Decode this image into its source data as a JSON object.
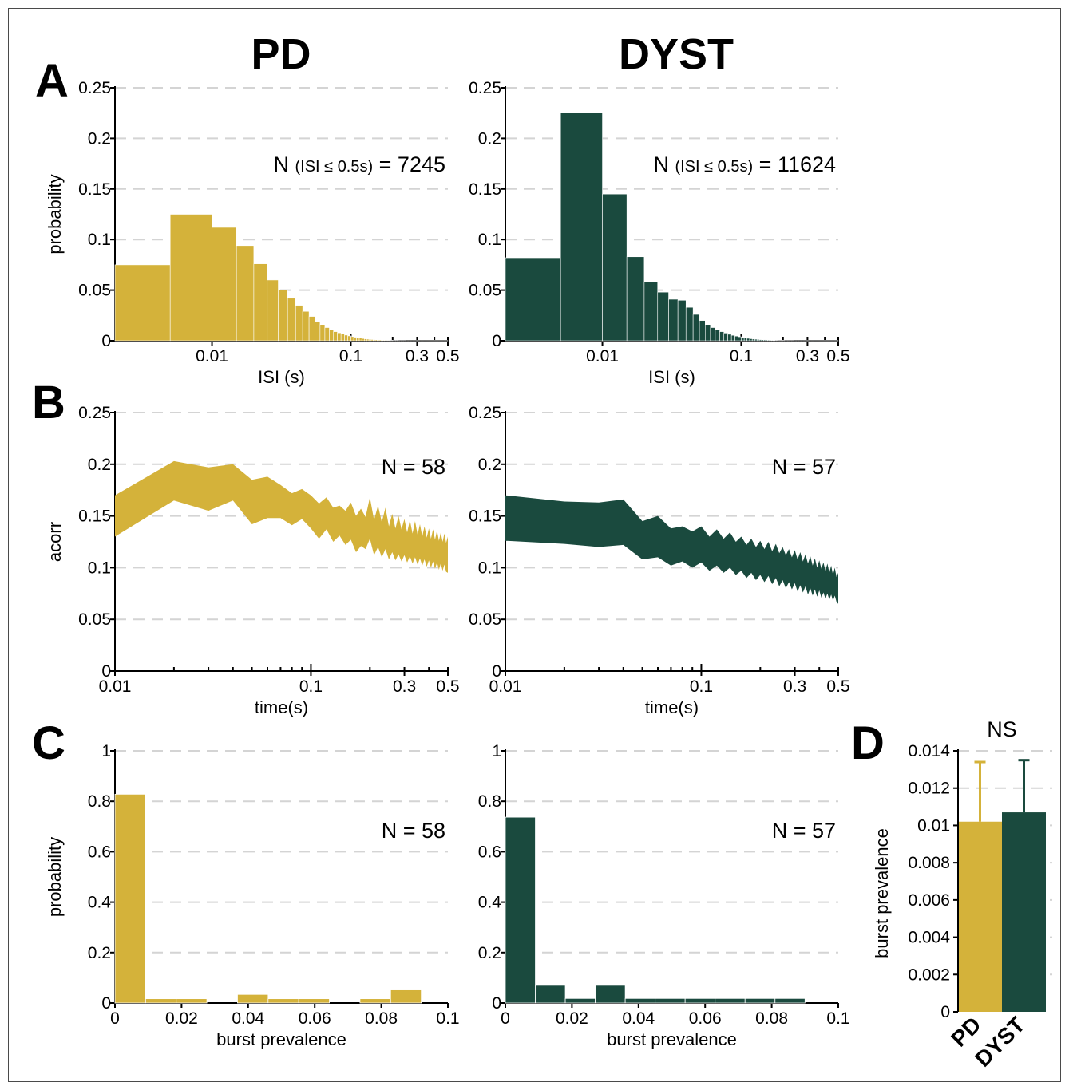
{
  "colors": {
    "pd": "#d4b23a",
    "dyst": "#1a4a3e",
    "grid": "#d4d4d4",
    "axis": "#000000"
  },
  "figure": {
    "col_titles": [
      "PD",
      "DYST"
    ],
    "panel_letters": [
      "A",
      "B",
      "C",
      "D"
    ]
  },
  "chart_data": [
    {
      "id": "A-PD",
      "type": "bar",
      "xlabel": "ISI (s)",
      "ylabel": "probability",
      "x_scale": "log",
      "xlim": [
        0.002,
        0.5
      ],
      "ylim": [
        0,
        0.25
      ],
      "yticks": [
        0,
        0.05,
        0.1,
        0.15,
        0.2,
        0.25
      ],
      "yticklabels": [
        "0",
        "0.05",
        "0.1",
        "0.15",
        "0.2",
        "0.25"
      ],
      "xticks": [
        0.01,
        0.1,
        0.3,
        0.5
      ],
      "xticklabels": [
        "0.01",
        "0.1",
        "0.3",
        "0.5"
      ],
      "annotation": {
        "prefix": "N",
        "sub": "(ISI ≤ 0.5s)",
        "suffix": "= 7245"
      },
      "bin_width": 0.005,
      "values": [
        0.075,
        0.125,
        0.112,
        0.094,
        0.076,
        0.06,
        0.05,
        0.042,
        0.035,
        0.029,
        0.024,
        0.019,
        0.016,
        0.013,
        0.011,
        0.009,
        0.0078,
        0.0066,
        0.0056,
        0.0048,
        0.0041,
        0.0035,
        0.003,
        0.0026,
        0.0022,
        0.0019,
        0.0016,
        0.0014,
        0.0012,
        0.0011,
        0.001,
        0.0009,
        0.0008,
        0.0007,
        0.0006,
        0.0006,
        0.0005,
        0.0005,
        0.0004,
        0.0004,
        0.0003,
        0.0003,
        0.0003,
        0.0003,
        0.0002,
        0.0002,
        0.0002,
        0.0002,
        0.0002,
        0.0002,
        0.0001,
        0.0001,
        0.0001,
        0.0001,
        0.0001,
        0.0001,
        0.0001,
        0.0001,
        0.0001,
        0.0001,
        0.0001,
        0.0001,
        0.0001,
        0.0001,
        0.0001,
        0.0001,
        0.0001,
        0.0001,
        0.0001,
        0.0001,
        0.0001,
        0.0001,
        0.0001,
        0.0001,
        0.0001,
        0.0001,
        0.0001,
        0.0001,
        0.0001,
        0.0001,
        0.0001,
        0.0001,
        0.0001,
        0.0001,
        0.0001,
        0.0001,
        0.0001,
        0.0001,
        0.0001,
        0.0001,
        0.0001,
        0.0001,
        0.0001,
        0.0001,
        0.0001,
        0.0001,
        0.0001,
        0.0001,
        0.0001,
        0.0001
      ],
      "color": "#d4b23a"
    },
    {
      "id": "A-DYST",
      "type": "bar",
      "xlabel": "ISI (s)",
      "ylabel": "",
      "x_scale": "log",
      "xlim": [
        0.002,
        0.5
      ],
      "ylim": [
        0,
        0.25
      ],
      "yticks": [
        0,
        0.05,
        0.1,
        0.15,
        0.2,
        0.25
      ],
      "yticklabels": [
        "0",
        "0.05",
        "0.1",
        "0.15",
        "0.2",
        "0.25"
      ],
      "xticks": [
        0.01,
        0.1,
        0.3,
        0.5
      ],
      "xticklabels": [
        "0.01",
        "0.1",
        "0.3",
        "0.5"
      ],
      "annotation": {
        "prefix": "N",
        "sub": "(ISI ≤ 0.5s)",
        "suffix": "= 11624"
      },
      "bin_width": 0.005,
      "values": [
        0.082,
        0.225,
        0.145,
        0.083,
        0.058,
        0.048,
        0.041,
        0.04,
        0.033,
        0.026,
        0.02,
        0.016,
        0.013,
        0.011,
        0.009,
        0.0076,
        0.0064,
        0.0054,
        0.0046,
        0.0039,
        0.0033,
        0.0028,
        0.0024,
        0.002,
        0.0017,
        0.0015,
        0.0013,
        0.0011,
        0.001,
        0.0009,
        0.0008,
        0.0007,
        0.0006,
        0.0005,
        0.0005,
        0.0004,
        0.0004,
        0.0003,
        0.0003,
        0.0003,
        0.0003,
        0.0002,
        0.0002,
        0.0002,
        0.0002,
        0.0002,
        0.0002,
        0.0002,
        0.0001,
        0.0001,
        0.0001,
        0.0001,
        0.0001,
        0.0001,
        0.0001,
        0.0001,
        0.0001,
        0.0001,
        0.0001,
        0.0001,
        0.0001,
        0.0001,
        0.0001,
        0.0001,
        0.0001,
        0.0001,
        0.0001,
        0.0001,
        0.0001,
        0.0001,
        0.0001,
        0.0001,
        0.0001,
        0.0001,
        0.0001,
        0.0001,
        0.0001,
        0.0001,
        0.0001,
        0.0001,
        0.0001,
        0.0001,
        0.0001,
        0.0001,
        0.0001,
        0.0001,
        0.0001,
        0.0001,
        0.0001,
        0.0001,
        0.0001,
        0.0001,
        0.0001,
        0.0001,
        0.0001,
        0.0001,
        0.0001,
        0.0001,
        0.0001,
        0.0001
      ],
      "color": "#1a4a3e"
    },
    {
      "id": "B-PD",
      "type": "area",
      "xlabel": "time(s)",
      "ylabel": "acorr",
      "x_scale": "log",
      "xlim": [
        0.01,
        0.5
      ],
      "ylim": [
        0,
        0.25
      ],
      "yticks": [
        0,
        0.05,
        0.1,
        0.15,
        0.2,
        0.25
      ],
      "yticklabels": [
        "0",
        "0.05",
        "0.1",
        "0.15",
        "0.2",
        "0.25"
      ],
      "xticks": [
        0.01,
        0.1,
        0.3,
        0.5
      ],
      "xticklabels": [
        "0.01",
        "0.1",
        "0.3",
        "0.5"
      ],
      "annotation": {
        "text": "N = 58"
      },
      "x": [
        0.01,
        0.02,
        0.03,
        0.04,
        0.05,
        0.06,
        0.07,
        0.08,
        0.09,
        0.1,
        0.11,
        0.12,
        0.13,
        0.14,
        0.15,
        0.16,
        0.17,
        0.18,
        0.19,
        0.2,
        0.21,
        0.22,
        0.23,
        0.24,
        0.25,
        0.26,
        0.27,
        0.28,
        0.29,
        0.3,
        0.31,
        0.32,
        0.33,
        0.34,
        0.35,
        0.36,
        0.37,
        0.38,
        0.39,
        0.4,
        0.41,
        0.42,
        0.43,
        0.44,
        0.45,
        0.46,
        0.47,
        0.48,
        0.49,
        0.5
      ],
      "upper": [
        0.17,
        0.203,
        0.197,
        0.2,
        0.185,
        0.188,
        0.18,
        0.172,
        0.176,
        0.17,
        0.162,
        0.168,
        0.158,
        0.16,
        0.155,
        0.163,
        0.15,
        0.157,
        0.149,
        0.168,
        0.146,
        0.16,
        0.144,
        0.158,
        0.14,
        0.152,
        0.138,
        0.15,
        0.137,
        0.147,
        0.134,
        0.146,
        0.133,
        0.145,
        0.132,
        0.142,
        0.13,
        0.14,
        0.129,
        0.138,
        0.128,
        0.137,
        0.127,
        0.136,
        0.126,
        0.134,
        0.125,
        0.133,
        0.124,
        0.13
      ],
      "lower": [
        0.13,
        0.165,
        0.155,
        0.165,
        0.142,
        0.148,
        0.148,
        0.141,
        0.147,
        0.138,
        0.128,
        0.137,
        0.125,
        0.131,
        0.122,
        0.127,
        0.115,
        0.121,
        0.118,
        0.128,
        0.112,
        0.12,
        0.11,
        0.118,
        0.108,
        0.115,
        0.107,
        0.113,
        0.106,
        0.112,
        0.105,
        0.111,
        0.104,
        0.11,
        0.103,
        0.109,
        0.102,
        0.108,
        0.101,
        0.107,
        0.1,
        0.106,
        0.099,
        0.105,
        0.098,
        0.104,
        0.097,
        0.103,
        0.096,
        0.095
      ],
      "color": "#d4b23a"
    },
    {
      "id": "B-DYST",
      "type": "area",
      "xlabel": "time(s)",
      "ylabel": "",
      "x_scale": "log",
      "xlim": [
        0.01,
        0.5
      ],
      "ylim": [
        0,
        0.25
      ],
      "yticks": [
        0,
        0.05,
        0.1,
        0.15,
        0.2,
        0.25
      ],
      "yticklabels": [
        "0",
        "0.05",
        "0.1",
        "0.15",
        "0.2",
        "0.25"
      ],
      "xticks": [
        0.01,
        0.1,
        0.3,
        0.5
      ],
      "xticklabels": [
        "0.01",
        "0.1",
        "0.3",
        "0.5"
      ],
      "annotation": {
        "text": "N = 57"
      },
      "x": [
        0.01,
        0.02,
        0.03,
        0.04,
        0.05,
        0.06,
        0.07,
        0.08,
        0.09,
        0.1,
        0.11,
        0.12,
        0.13,
        0.14,
        0.15,
        0.16,
        0.17,
        0.18,
        0.19,
        0.2,
        0.21,
        0.22,
        0.23,
        0.24,
        0.25,
        0.26,
        0.27,
        0.28,
        0.29,
        0.3,
        0.31,
        0.32,
        0.33,
        0.34,
        0.35,
        0.36,
        0.37,
        0.38,
        0.39,
        0.4,
        0.41,
        0.42,
        0.43,
        0.44,
        0.45,
        0.46,
        0.47,
        0.48,
        0.49,
        0.5
      ],
      "upper": [
        0.17,
        0.164,
        0.163,
        0.166,
        0.145,
        0.15,
        0.138,
        0.14,
        0.135,
        0.14,
        0.13,
        0.137,
        0.128,
        0.134,
        0.125,
        0.13,
        0.122,
        0.128,
        0.12,
        0.126,
        0.118,
        0.125,
        0.116,
        0.123,
        0.114,
        0.12,
        0.112,
        0.118,
        0.11,
        0.117,
        0.108,
        0.115,
        0.106,
        0.113,
        0.104,
        0.111,
        0.102,
        0.109,
        0.1,
        0.107,
        0.099,
        0.105,
        0.097,
        0.104,
        0.095,
        0.102,
        0.093,
        0.1,
        0.091,
        0.095
      ],
      "lower": [
        0.126,
        0.123,
        0.12,
        0.122,
        0.108,
        0.11,
        0.102,
        0.106,
        0.1,
        0.105,
        0.097,
        0.102,
        0.095,
        0.1,
        0.093,
        0.097,
        0.09,
        0.095,
        0.088,
        0.093,
        0.086,
        0.092,
        0.084,
        0.09,
        0.082,
        0.088,
        0.08,
        0.086,
        0.079,
        0.085,
        0.077,
        0.083,
        0.076,
        0.082,
        0.074,
        0.08,
        0.073,
        0.079,
        0.072,
        0.078,
        0.071,
        0.076,
        0.07,
        0.075,
        0.069,
        0.074,
        0.068,
        0.073,
        0.067,
        0.065
      ],
      "color": "#1a4a3e"
    },
    {
      "id": "C-PD",
      "type": "bar",
      "xlabel": "burst prevalence",
      "ylabel": "probability",
      "xlim": [
        0,
        0.1
      ],
      "ylim": [
        0,
        1
      ],
      "yticks": [
        0,
        0.2,
        0.4,
        0.6,
        0.8,
        1
      ],
      "yticklabels": [
        "0",
        "0.2",
        "0.4",
        "0.6",
        "0.8",
        "1"
      ],
      "xticks": [
        0,
        0.02,
        0.04,
        0.06,
        0.08,
        0.1
      ],
      "xticklabels": [
        "0",
        "0.02",
        "0.04",
        "0.06",
        "0.08",
        "0.1"
      ],
      "annotation": {
        "text": "N = 58"
      },
      "bin_edges": [
        0,
        0.0092,
        0.0184,
        0.0276,
        0.0368,
        0.046,
        0.0552,
        0.0644,
        0.0736,
        0.0828,
        0.092
      ],
      "values": [
        0.828,
        0.017,
        0.017,
        0,
        0.034,
        0.017,
        0.017,
        0,
        0.017,
        0.052
      ],
      "color": "#d4b23a"
    },
    {
      "id": "C-DYST",
      "type": "bar",
      "xlabel": "burst prevalence",
      "ylabel": "",
      "xlim": [
        0,
        0.1
      ],
      "ylim": [
        0,
        1
      ],
      "yticks": [
        0,
        0.2,
        0.4,
        0.6,
        0.8,
        1
      ],
      "yticklabels": [
        "0",
        "0.2",
        "0.4",
        "0.6",
        "0.8",
        "1"
      ],
      "xticks": [
        0,
        0.02,
        0.04,
        0.06,
        0.08,
        0.1
      ],
      "xticklabels": [
        "0",
        "0.02",
        "0.04",
        "0.06",
        "0.08",
        "0.1"
      ],
      "annotation": {
        "text": "N = 57"
      },
      "bin_edges": [
        0,
        0.009,
        0.018,
        0.027,
        0.036,
        0.045,
        0.054,
        0.063,
        0.072,
        0.081,
        0.09
      ],
      "values": [
        0.737,
        0.07,
        0.018,
        0.07,
        0.018,
        0.018,
        0.018,
        0.018,
        0.018,
        0.018
      ],
      "color": "#1a4a3e"
    },
    {
      "id": "D",
      "type": "bar",
      "title": "NS",
      "ylabel": "burst prevalence",
      "ylim": [
        0,
        0.014
      ],
      "yticks": [
        0,
        0.002,
        0.004,
        0.006,
        0.008,
        0.01,
        0.012,
        0.014
      ],
      "yticklabels": [
        "0",
        "0.002",
        "0.004",
        "0.006",
        "0.008",
        "0.01",
        "0.012",
        "0.014"
      ],
      "categories": [
        "PD",
        "DYST"
      ],
      "values": [
        0.0102,
        0.0107
      ],
      "errors": [
        0.0032,
        0.0028
      ],
      "colors": [
        "#d4b23a",
        "#1a4a3e"
      ]
    }
  ]
}
